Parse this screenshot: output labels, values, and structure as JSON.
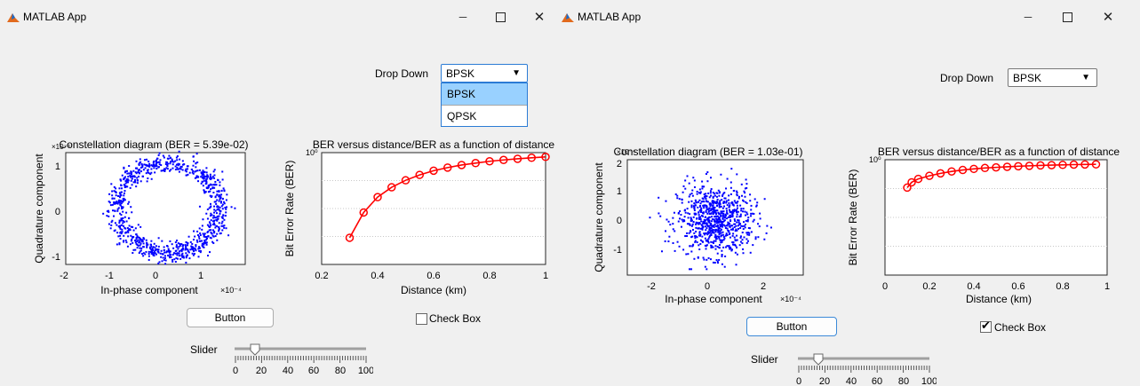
{
  "windows": [
    {
      "title": "MATLAB App",
      "dropdown": {
        "label": "Drop Down",
        "value": "BPSK",
        "open": true,
        "options": [
          "BPSK",
          "QPSK"
        ]
      },
      "constellation": {
        "title": "Constellation diagram (BER = 5.39e-02)",
        "xlabel": "In-phase component",
        "ylabel": "Quadrature component",
        "xticks": [
          "-2",
          "-1",
          "0",
          "1"
        ],
        "yticks": [
          "1",
          "0",
          "-1"
        ],
        "exponent": "×10⁻⁴",
        "y_exponent": "×10⁻⁴"
      },
      "ber": {
        "title": "BER versus distance/BER as a function of distance",
        "xlabel": "Distance (km)",
        "ylabel": "Bit Error Rate (BER)",
        "xticks": [
          "0.2",
          "0.4",
          "0.6",
          "0.8",
          "1"
        ],
        "ytop": "10⁰"
      },
      "button": "Button",
      "checkbox": {
        "label": "Check Box",
        "checked": false
      },
      "slider": {
        "label": "Slider",
        "value": 17,
        "ticks": [
          "0",
          "20",
          "40",
          "60",
          "80",
          "100"
        ]
      }
    },
    {
      "title": "MATLAB App",
      "dropdown": {
        "label": "Drop Down",
        "value": "BPSK",
        "open": false
      },
      "constellation": {
        "title": "Constellation diagram (BER = 1.03e-01)",
        "xlabel": "In-phase component",
        "ylabel": "Quadrature component",
        "xticks": [
          "-2",
          "0",
          "2"
        ],
        "yticks": [
          "2",
          "1",
          "0",
          "-1"
        ],
        "exponent": "×10⁻⁴",
        "y_exponent": "×10⁻⁴"
      },
      "ber": {
        "title": "BER versus distance/BER as a function of distance",
        "xlabel": "Distance (km)",
        "ylabel": "Bit Error Rate (BER)",
        "xticks": [
          "0",
          "0.2",
          "0.4",
          "0.6",
          "0.8",
          "1"
        ],
        "ytop": "10⁰"
      },
      "button": "Button",
      "checkbox": {
        "label": "Check Box",
        "checked": true
      },
      "slider": {
        "label": "Slider",
        "value": 17,
        "ticks": [
          "0",
          "20",
          "40",
          "60",
          "80",
          "100"
        ]
      }
    }
  ],
  "chart_data": [
    {
      "type": "scatter",
      "title": "Constellation diagram (BER = 5.39e-02)",
      "xlabel": "In-phase component",
      "ylabel": "Quadrature component",
      "xlim": [
        -2,
        1.5
      ],
      "ylim": [
        -1.25,
        1.25
      ],
      "shape": "ring",
      "radius": 1.0,
      "color": "#0000ff"
    },
    {
      "type": "line",
      "title": "BER versus distance/BER as a function of distance",
      "xlabel": "Distance (km)",
      "ylabel": "Bit Error Rate (BER)",
      "xlim": [
        0.2,
        1
      ],
      "yscale": "log",
      "color": "#ff0000",
      "x": [
        0.3,
        0.35,
        0.4,
        0.45,
        0.5,
        0.55,
        0.6,
        0.65,
        0.7,
        0.75,
        0.8,
        0.85,
        0.9,
        0.95,
        1.0
      ],
      "y": [
        0.006,
        0.017,
        0.032,
        0.048,
        0.064,
        0.08,
        0.095,
        0.108,
        0.12,
        0.13,
        0.14,
        0.148,
        0.155,
        0.162,
        0.168
      ]
    },
    {
      "type": "scatter",
      "title": "Constellation diagram (BER = 1.03e-01)",
      "xlabel": "In-phase component",
      "ylabel": "Quadrature component",
      "xlim": [
        -3.5,
        3.5
      ],
      "ylim": [
        -1.8,
        2.1
      ],
      "shape": "cloud",
      "color": "#0000ff"
    },
    {
      "type": "line",
      "title": "BER versus distance/BER as a function of distance",
      "xlabel": "Distance (km)",
      "ylabel": "Bit Error Rate (BER)",
      "xlim": [
        0,
        1
      ],
      "yscale": "log",
      "color": "#ff0000",
      "x": [
        0.1,
        0.12,
        0.15,
        0.2,
        0.25,
        0.3,
        0.35,
        0.4,
        0.45,
        0.5,
        0.55,
        0.6,
        0.65,
        0.7,
        0.75,
        0.8,
        0.85,
        0.9,
        0.95
      ],
      "y": [
        0.1,
        0.12,
        0.135,
        0.15,
        0.163,
        0.174,
        0.183,
        0.19,
        0.196,
        0.2,
        0.204,
        0.208,
        0.211,
        0.214,
        0.216,
        0.218,
        0.22,
        0.221,
        0.222
      ]
    }
  ]
}
